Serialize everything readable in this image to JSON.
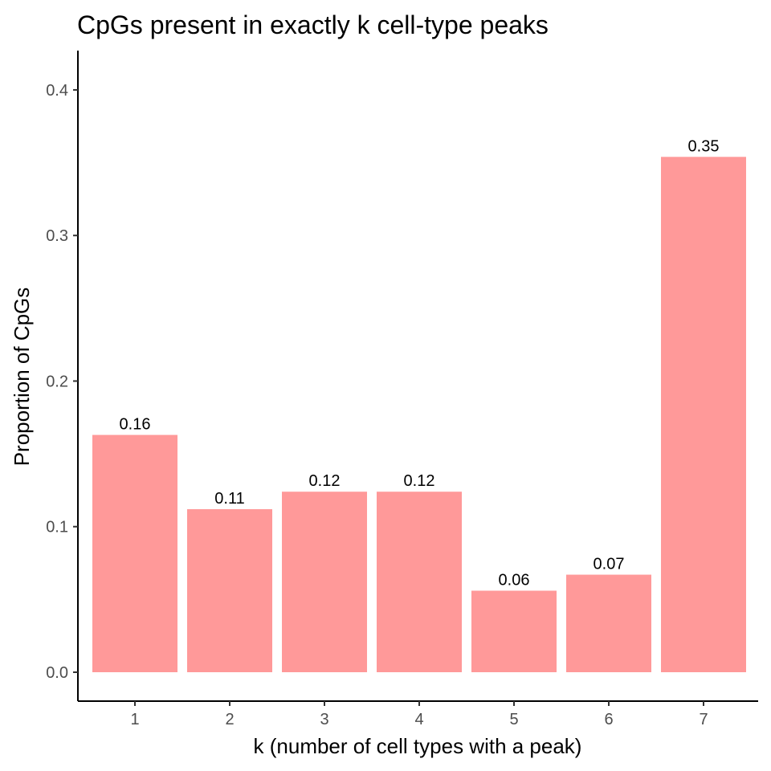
{
  "chart_data": {
    "type": "bar",
    "title": "CpGs present in exactly k cell-type peaks",
    "xlabel": "k (number of cell types with a peak)",
    "ylabel": "Proportion of CpGs",
    "categories": [
      "1",
      "2",
      "3",
      "4",
      "5",
      "6",
      "7"
    ],
    "values": [
      0.163,
      0.112,
      0.124,
      0.124,
      0.056,
      0.067,
      0.354
    ],
    "data_labels": [
      "0.16",
      "0.11",
      "0.12",
      "0.12",
      "0.06",
      "0.07",
      "0.35"
    ],
    "ylim": [
      0,
      0.427
    ],
    "yticks": [
      0.0,
      0.1,
      0.2,
      0.3,
      0.4
    ],
    "ytick_labels": [
      "0.0",
      "0.1",
      "0.2",
      "0.3",
      "0.4"
    ],
    "bar_color": "#ff9999",
    "grid": false,
    "legend": "none"
  }
}
